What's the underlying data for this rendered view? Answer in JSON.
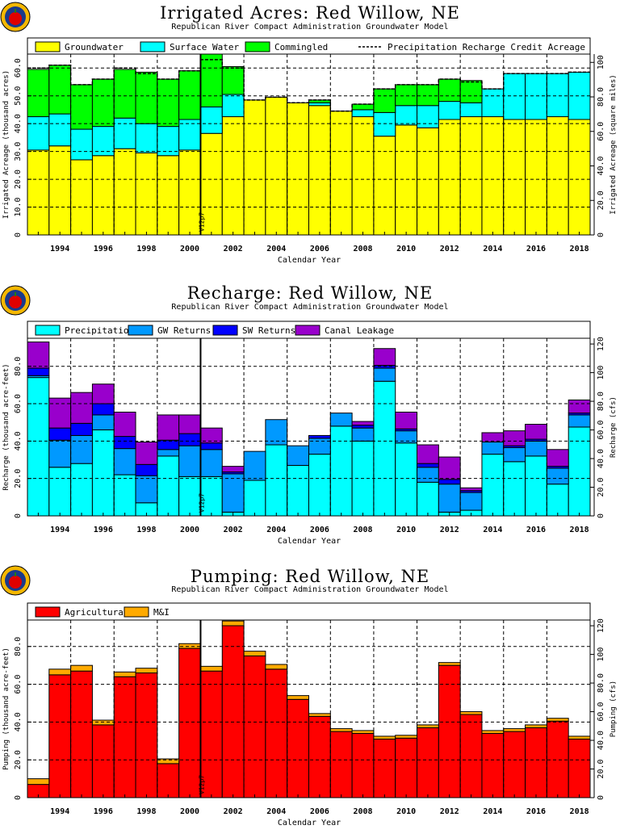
{
  "vline_label": "V12p7",
  "chart_data": [
    {
      "type": "bar",
      "title": "Irrigated Acres: Red Willow, NE",
      "subtitle": "Republican River Compact Administration Groundwater Model",
      "xlabel": "Calendar Year",
      "ylabel": "Irrigated Acreage (thousand acres)",
      "y2label": "Irrigated Acreage (square miles)",
      "stacked": true,
      "years": [
        1993,
        1994,
        1995,
        1996,
        1997,
        1998,
        1999,
        2000,
        2001,
        2002,
        2003,
        2004,
        2005,
        2006,
        2007,
        2008,
        2009,
        2010,
        2011,
        2012,
        2013,
        2014,
        2015,
        2016,
        2017,
        2018
      ],
      "xticks": [
        "1994",
        "1996",
        "1998",
        "2000",
        "2002",
        "2004",
        "2006",
        "2008",
        "2010",
        "2012",
        "2014",
        "2016",
        "2018"
      ],
      "yticks": [
        "0",
        "10.0",
        "20.0",
        "30.0",
        "40.0",
        "50.0",
        "60.0"
      ],
      "y2ticks": [
        "0",
        "20.0",
        "40.0",
        "60.0",
        "80.0",
        "100"
      ],
      "ylim": [
        0,
        65
      ],
      "series": [
        {
          "name": "Groundwater",
          "color": "#ffff00",
          "values": [
            30.5,
            32,
            27,
            28.5,
            31,
            29.5,
            28.5,
            30.5,
            36.5,
            42.5,
            48.5,
            49.5,
            47.5,
            46.5,
            44.5,
            42.5,
            35.5,
            39.5,
            38.5,
            41.5,
            42.5,
            42.5,
            41.5,
            41.5,
            42.5,
            41.5
          ]
        },
        {
          "name": "Surface Water",
          "color": "#00ffff",
          "values": [
            12,
            11.5,
            11,
            10.5,
            11,
            10.5,
            10.5,
            11,
            9.5,
            8,
            0,
            0,
            0,
            1,
            0,
            2.5,
            8.5,
            7,
            8,
            6.5,
            5,
            10,
            16.5,
            16.5,
            15.5,
            17
          ]
        },
        {
          "name": "Commingled",
          "color": "#00ff00",
          "values": [
            17,
            17.5,
            16,
            17,
            17.5,
            18.5,
            17,
            17.5,
            19,
            10,
            0,
            0,
            0,
            1,
            0,
            2,
            8.5,
            7.5,
            7.5,
            8,
            8,
            0,
            0,
            0,
            0,
            0
          ]
        }
      ],
      "line": {
        "name": "Precipitation Recharge Credit Acreage",
        "style": "dashed",
        "values": [
          60,
          61,
          54,
          56,
          60,
          58,
          56,
          59,
          63,
          60,
          48.5,
          49.5,
          47.5,
          48.5,
          44.5,
          47,
          52.5,
          54,
          54,
          56,
          55,
          52.5,
          58,
          58,
          58,
          58.5
        ]
      }
    },
    {
      "type": "bar",
      "title": "Recharge: Red Willow, NE",
      "subtitle": "Republican River Compact Administration Groundwater Model",
      "xlabel": "Calendar Year",
      "ylabel": "Recharge (thousand acre-feet)",
      "y2label": "Recharge (cfs)",
      "stacked": true,
      "years": [
        1993,
        1994,
        1995,
        1996,
        1997,
        1998,
        1999,
        2000,
        2001,
        2002,
        2003,
        2004,
        2005,
        2006,
        2007,
        2008,
        2009,
        2010,
        2011,
        2012,
        2013,
        2014,
        2015,
        2016,
        2017,
        2018
      ],
      "xticks": [
        "1994",
        "1996",
        "1998",
        "2000",
        "2002",
        "2004",
        "2006",
        "2008",
        "2010",
        "2012",
        "2014",
        "2016",
        "2018"
      ],
      "yticks": [
        "0",
        "20.0",
        "40.0",
        "60.0",
        "80.0"
      ],
      "y2ticks": [
        "0",
        "20.0",
        "40.0",
        "60.0",
        "80.0",
        "100",
        "120"
      ],
      "ylim": [
        0,
        95
      ],
      "series": [
        {
          "name": "Precipitation",
          "color": "#00ffff",
          "values": [
            74,
            26,
            28,
            46,
            22,
            7,
            32,
            21,
            21,
            2,
            19,
            38,
            27,
            33,
            48,
            40,
            72,
            39,
            18,
            2,
            3,
            33,
            29,
            32,
            17,
            47.5
          ]
        },
        {
          "name": "GW Returns",
          "color": "#0099ff",
          "values": [
            1,
            14.5,
            15,
            8,
            14,
            14.5,
            3.5,
            16.5,
            14.5,
            20.5,
            15.5,
            13.5,
            10.5,
            8.5,
            7,
            7,
            7,
            6.5,
            8,
            15,
            9.5,
            6.5,
            7.5,
            8,
            8.5,
            6.5
          ]
        },
        {
          "name": "SW Returns",
          "color": "#0000ff",
          "values": [
            4,
            6.5,
            6.5,
            6,
            6.5,
            6,
            5,
            6.5,
            3.5,
            1,
            0,
            0,
            0,
            1.5,
            0,
            1.5,
            1.5,
            1,
            2,
            2.5,
            1,
            0,
            1,
            1,
            1,
            1
          ]
        },
        {
          "name": "Canal Leakage",
          "color": "#9900cc",
          "values": [
            14,
            16,
            16.5,
            10.5,
            13,
            12,
            13.5,
            10,
            8,
            3,
            0,
            0,
            0,
            0,
            0,
            2,
            9,
            9,
            10,
            12,
            1.5,
            5,
            8,
            8,
            9,
            7
          ]
        }
      ]
    },
    {
      "type": "bar",
      "title": "Pumping: Red Willow, NE",
      "subtitle": "Republican River Compact Administration Groundwater Model",
      "xlabel": "Calendar Year",
      "ylabel": "Pumping (thousand acre-feet)",
      "y2label": "Pumping (cfs)",
      "stacked": true,
      "years": [
        1993,
        1994,
        1995,
        1996,
        1997,
        1998,
        1999,
        2000,
        2001,
        2002,
        2003,
        2004,
        2005,
        2006,
        2007,
        2008,
        2009,
        2010,
        2011,
        2012,
        2013,
        2014,
        2015,
        2016,
        2017,
        2018
      ],
      "xticks": [
        "1994",
        "1996",
        "1998",
        "2000",
        "2002",
        "2004",
        "2006",
        "2008",
        "2010",
        "2012",
        "2014",
        "2016",
        "2018"
      ],
      "yticks": [
        "0",
        "20.0",
        "40.0",
        "60.0",
        "80.0"
      ],
      "y2ticks": [
        "0",
        "20.0",
        "40.0",
        "60.0",
        "80.0",
        "100",
        "120"
      ],
      "ylim": [
        0,
        94
      ],
      "series": [
        {
          "name": "Agricultural",
          "color": "#ff0000",
          "values": [
            7,
            65,
            67,
            38.5,
            64,
            66,
            18,
            79,
            67,
            91,
            75,
            68,
            52,
            43,
            35,
            34,
            31,
            31.5,
            37,
            70,
            44,
            34,
            35,
            37,
            40.5,
            31
          ]
        },
        {
          "name": "M&I",
          "color": "#ffaa00",
          "values": [
            3,
            3,
            3,
            2.5,
            2.5,
            2.5,
            2.5,
            2.5,
            2.5,
            2.5,
            2.5,
            2.5,
            2,
            1.5,
            1.5,
            1.5,
            1.5,
            1.5,
            1.5,
            1.5,
            1.5,
            1.5,
            1.5,
            1.5,
            1.5,
            1.5
          ]
        }
      ]
    }
  ]
}
